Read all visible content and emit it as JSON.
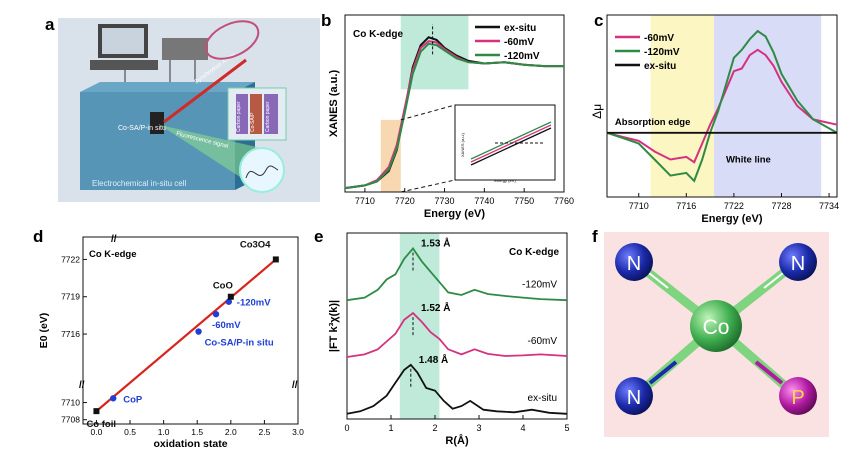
{
  "panels": {
    "a": {
      "letter": "a",
      "cell_caption": "Electrochemical in-situ cell",
      "we_label": "Co-SA/P-in situ",
      "beam_in": "Synchrotron X-ray",
      "beam_out": "Fluorescence signal",
      "layers": [
        "Carbon paper",
        "Co-SA/P",
        "Carbon paper"
      ]
    },
    "b": {
      "letter": "b",
      "inset_xlabel": "Energy (eV)",
      "inset_ylabel": "XANES (a.u.)"
    },
    "c": {
      "letter": "c",
      "region_labels": [
        "Absorption edge",
        "White line"
      ]
    },
    "d": {
      "letter": "d"
    },
    "e": {
      "letter": "e"
    },
    "f": {
      "letter": "f",
      "center": "Co",
      "ligands": [
        "N",
        "N",
        "N",
        "P"
      ]
    }
  },
  "colors": {
    "ex_situ": "#111111",
    "mv60": "#d6317f",
    "mv120": "#2e8b45",
    "fit_line": "#d9231b",
    "point_blue": "#1f3fd6",
    "n_atom": "#1a2aa8",
    "p_atom": "#b01aa0",
    "co_atom": "#3fae4f",
    "green_band": "#bfead9",
    "orange_band": "#f7d8b0",
    "yellow_band": "#fbf6c2",
    "lavender_band": "#d9dcf6",
    "pink_bg": "#fbe2e2"
  },
  "chart_data": [
    {
      "id": "b",
      "type": "line",
      "annotation": "Co K-edge",
      "xlabel": "Energy (eV)",
      "ylabel": "XANES (a.u.)",
      "xlim": [
        7705,
        7760
      ],
      "ylim": [
        0,
        1.35
      ],
      "xticks": [
        7710,
        7720,
        7730,
        7740,
        7750,
        7760
      ],
      "legend": "top-right",
      "series": [
        {
          "name": "ex-situ",
          "x": [
            7705,
            7710,
            7713,
            7716,
            7718,
            7720,
            7722,
            7724,
            7726,
            7728,
            7730,
            7733,
            7736,
            7740,
            7745,
            7750,
            7755,
            7760
          ],
          "y": [
            0.03,
            0.05,
            0.08,
            0.16,
            0.32,
            0.62,
            0.95,
            1.12,
            1.18,
            1.16,
            1.1,
            1.04,
            1.0,
            0.98,
            0.99,
            0.97,
            0.96,
            0.96
          ]
        },
        {
          "name": "-60mV",
          "x": [
            7705,
            7710,
            7713,
            7716,
            7718,
            7720,
            7722,
            7724,
            7726,
            7728,
            7730,
            7733,
            7736,
            7740,
            7745,
            7750,
            7755,
            7760
          ],
          "y": [
            0.03,
            0.05,
            0.09,
            0.19,
            0.36,
            0.64,
            0.93,
            1.1,
            1.15,
            1.14,
            1.09,
            1.03,
            0.99,
            0.98,
            0.99,
            0.97,
            0.96,
            0.96
          ]
        },
        {
          "name": "-120mV",
          "x": [
            7705,
            7710,
            7713,
            7716,
            7718,
            7720,
            7722,
            7724,
            7726,
            7728,
            7730,
            7733,
            7736,
            7740,
            7745,
            7750,
            7755,
            7760
          ],
          "y": [
            0.03,
            0.05,
            0.08,
            0.17,
            0.33,
            0.6,
            0.9,
            1.07,
            1.13,
            1.12,
            1.08,
            1.02,
            0.99,
            0.98,
            0.99,
            0.97,
            0.96,
            0.96
          ]
        }
      ]
    },
    {
      "id": "c",
      "type": "line",
      "ylabel": "Δμ",
      "xlabel": "Energy (eV)",
      "xlim": [
        7706,
        7735
      ],
      "ylim": [
        -1.2,
        2.2
      ],
      "xticks": [
        7710,
        7716,
        7722,
        7728,
        7734
      ],
      "legend": "top-left",
      "series": [
        {
          "name": "-60mV",
          "x": [
            7706,
            7708,
            7710,
            7712,
            7714,
            7716,
            7717,
            7718,
            7719,
            7720,
            7721,
            7722,
            7723,
            7724,
            7725,
            7726,
            7727,
            7728,
            7730,
            7732,
            7735
          ],
          "y": [
            0.0,
            -0.08,
            -0.15,
            -0.35,
            -0.5,
            -0.45,
            -0.55,
            -0.2,
            0.15,
            0.45,
            0.8,
            1.15,
            1.2,
            1.45,
            1.55,
            1.45,
            1.25,
            0.95,
            0.5,
            0.25,
            0.15
          ]
        },
        {
          "name": "-120mV",
          "x": [
            7706,
            7708,
            7710,
            7712,
            7714,
            7716,
            7717,
            7718,
            7719,
            7720,
            7721,
            7722,
            7723,
            7724,
            7725,
            7726,
            7727,
            7728,
            7730,
            7732,
            7735
          ],
          "y": [
            0.0,
            -0.1,
            -0.2,
            -0.5,
            -0.8,
            -0.75,
            -0.9,
            -0.5,
            0.0,
            0.4,
            0.9,
            1.4,
            1.55,
            1.75,
            1.9,
            1.8,
            1.5,
            1.1,
            0.6,
            0.25,
            0.0
          ]
        },
        {
          "name": "ex-situ",
          "x": [
            7706,
            7735
          ],
          "y": [
            0.0,
            0.0
          ]
        }
      ]
    },
    {
      "id": "d",
      "type": "scatter",
      "annotation": "Co K-edge",
      "xlabel": "oxidation state",
      "ylabel": "E0 (eV)",
      "xlim": [
        -0.2,
        3.0
      ],
      "ylim": [
        7707.5,
        7723
      ],
      "xticks": [
        0.0,
        0.5,
        1.0,
        1.5,
        2.0,
        2.5,
        3.0
      ],
      "yticks": [
        7708,
        7710,
        7716,
        7719,
        7722
      ],
      "fit": {
        "x": [
          0.0,
          2.67
        ],
        "y": [
          7709.0,
          7722.0
        ]
      },
      "points": [
        {
          "label": "Co foil",
          "x": 0.0,
          "y": 7709.0,
          "kind": "reference"
        },
        {
          "label": "CoP",
          "x": 0.25,
          "y": 7710.5,
          "kind": "sample"
        },
        {
          "label": "Co-SA/P-in situ",
          "x": 1.52,
          "y": 7716.2,
          "kind": "sample"
        },
        {
          "label": "-60mV",
          "x": 1.78,
          "y": 7717.6,
          "kind": "sample"
        },
        {
          "label": "-120mV",
          "x": 1.97,
          "y": 7718.6,
          "kind": "sample"
        },
        {
          "label": "CoO",
          "x": 2.0,
          "y": 7719.0,
          "kind": "reference"
        },
        {
          "label": "Co3O4",
          "x": 2.67,
          "y": 7722.0,
          "kind": "reference"
        }
      ]
    },
    {
      "id": "e",
      "type": "line",
      "annotation": "Co K-edge",
      "xlabel": "R(Å)",
      "ylabel": "|FT k³χ(k)|",
      "xlim": [
        0,
        5
      ],
      "xticks": [
        0,
        1,
        2,
        3,
        4,
        5
      ],
      "band": [
        1.2,
        2.1
      ],
      "peak_labels": [
        "1.53 Å",
        "1.52 Å",
        "1.48 Å"
      ],
      "series": [
        {
          "name": "-120mV",
          "offset": 2.2,
          "peak_label": "1.53 Å",
          "x": [
            0,
            0.4,
            0.7,
            0.9,
            1.1,
            1.3,
            1.5,
            1.7,
            1.9,
            2.1,
            2.3,
            2.6,
            2.9,
            3.2,
            3.6,
            4.0,
            4.4,
            5.0
          ],
          "y": [
            0.0,
            0.05,
            0.2,
            0.4,
            0.5,
            0.8,
            1.0,
            0.75,
            0.55,
            0.35,
            0.15,
            0.1,
            0.2,
            0.12,
            0.08,
            0.05,
            0.02,
            0.0
          ]
        },
        {
          "name": "-60mV",
          "offset": 1.1,
          "peak_label": "1.52 Å",
          "x": [
            0,
            0.4,
            0.7,
            0.9,
            1.1,
            1.3,
            1.5,
            1.7,
            1.9,
            2.1,
            2.3,
            2.6,
            2.9,
            3.2,
            3.6,
            4.0,
            4.4,
            5.0
          ],
          "y": [
            0.0,
            0.05,
            0.15,
            0.3,
            0.45,
            0.72,
            0.85,
            0.68,
            0.48,
            0.35,
            0.15,
            0.05,
            0.15,
            0.06,
            0.02,
            0.03,
            0.05,
            0.02
          ]
        },
        {
          "name": "ex-situ",
          "offset": 0.0,
          "peak_label": "1.48 Å",
          "x": [
            0,
            0.3,
            0.6,
            0.9,
            1.1,
            1.3,
            1.45,
            1.6,
            1.8,
            2.0,
            2.2,
            2.4,
            2.6,
            2.8,
            3.1,
            3.4,
            3.8,
            4.2,
            4.6,
            5.0
          ],
          "y": [
            0.0,
            0.05,
            0.15,
            0.35,
            0.6,
            0.85,
            0.95,
            0.8,
            0.5,
            0.45,
            0.25,
            0.1,
            0.15,
            0.25,
            0.08,
            0.05,
            0.03,
            0.08,
            0.02,
            0.0
          ]
        }
      ]
    }
  ]
}
